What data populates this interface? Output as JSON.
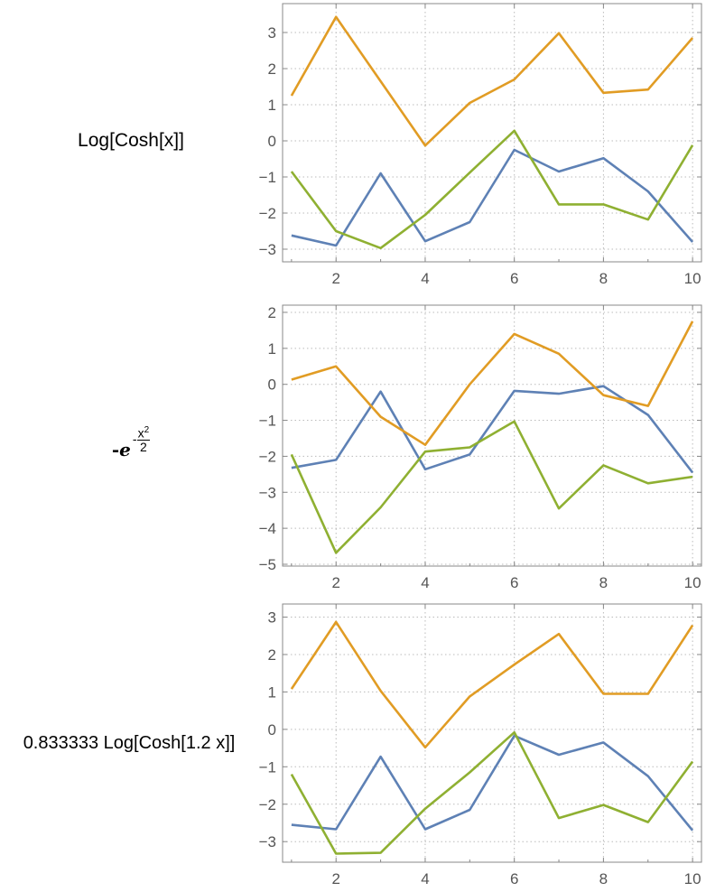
{
  "labels": {
    "row1": "Log[Cosh[x]]",
    "row2_neg": "-",
    "row2_e": "e",
    "row2_exp_sign": "-",
    "row2_exp_num": "x",
    "row2_exp_pow": "2",
    "row2_exp_den": "2",
    "row3": "0.833333 Log[Cosh[1.2 x]]"
  },
  "colors": {
    "blue": "#5E81B5",
    "orange": "#E19C24",
    "green": "#8FB032",
    "axis": "#888888",
    "grid": "#bbbbbb"
  },
  "chart_data": [
    {
      "type": "line",
      "title": "",
      "x": [
        1,
        2,
        3,
        4,
        5,
        6,
        7,
        8,
        9,
        10
      ],
      "xlim": [
        0.8,
        10.2
      ],
      "ylim": [
        -3.35,
        3.8
      ],
      "xticks": [
        2,
        4,
        6,
        8,
        10
      ],
      "yticks": [
        -3,
        -2,
        -1,
        0,
        1,
        2,
        3
      ],
      "grid": true,
      "series": [
        {
          "color": "blue",
          "values": [
            -2.62,
            -2.9,
            -0.9,
            -2.78,
            -2.25,
            -0.25,
            -0.85,
            -0.48,
            -1.4,
            -2.8
          ]
        },
        {
          "color": "orange",
          "values": [
            1.25,
            3.43,
            1.65,
            -0.13,
            1.05,
            1.7,
            2.98,
            1.33,
            1.42,
            2.85
          ]
        },
        {
          "color": "green",
          "values": [
            -0.85,
            -2.5,
            -2.97,
            -2.05,
            -0.88,
            0.28,
            -1.76,
            -1.76,
            -2.18,
            -0.12
          ]
        }
      ]
    },
    {
      "type": "line",
      "title": "",
      "x": [
        1,
        2,
        3,
        4,
        5,
        6,
        7,
        8,
        9,
        10
      ],
      "xlim": [
        0.8,
        10.2
      ],
      "ylim": [
        -5.05,
        2.2
      ],
      "xticks": [
        2,
        4,
        6,
        8,
        10
      ],
      "yticks": [
        -5,
        -4,
        -3,
        -2,
        -1,
        0,
        1,
        2
      ],
      "grid": true,
      "series": [
        {
          "color": "blue",
          "values": [
            -2.32,
            -2.1,
            -0.2,
            -2.36,
            -1.95,
            -0.18,
            -0.26,
            -0.05,
            -0.85,
            -2.45
          ]
        },
        {
          "color": "orange",
          "values": [
            0.13,
            0.5,
            -0.9,
            -1.68,
            0.0,
            1.4,
            0.85,
            -0.3,
            -0.6,
            1.75
          ]
        },
        {
          "color": "green",
          "values": [
            -1.95,
            -4.68,
            -3.42,
            -1.87,
            -1.75,
            -1.03,
            -3.45,
            -2.25,
            -2.75,
            -2.57
          ]
        }
      ]
    },
    {
      "type": "line",
      "title": "",
      "x": [
        1,
        2,
        3,
        4,
        5,
        6,
        7,
        8,
        9,
        10
      ],
      "xlim": [
        0.8,
        10.2
      ],
      "ylim": [
        -3.55,
        3.35
      ],
      "xticks": [
        2,
        4,
        6,
        8,
        10
      ],
      "yticks": [
        -3,
        -2,
        -1,
        0,
        1,
        2,
        3
      ],
      "grid": true,
      "series": [
        {
          "color": "blue",
          "values": [
            -2.55,
            -2.67,
            -0.73,
            -2.67,
            -2.15,
            -0.17,
            -0.68,
            -0.35,
            -1.25,
            -2.7
          ]
        },
        {
          "color": "orange",
          "values": [
            1.08,
            2.87,
            1.03,
            -0.48,
            0.88,
            1.73,
            2.55,
            0.95,
            0.95,
            2.78
          ]
        },
        {
          "color": "green",
          "values": [
            -1.2,
            -3.32,
            -3.3,
            -2.12,
            -1.15,
            -0.08,
            -2.37,
            -2.02,
            -2.48,
            -0.86
          ]
        }
      ]
    }
  ]
}
